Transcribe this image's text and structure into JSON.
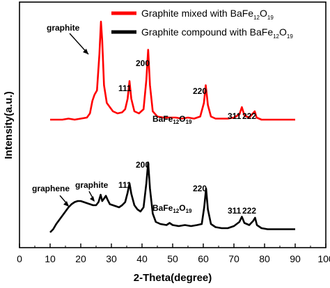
{
  "chart_data": {
    "type": "line",
    "xlabel": "2-Theta(degree)",
    "ylabel": "Intensity(a.u.)",
    "xlim": [
      0,
      100
    ],
    "x_ticks": [
      0,
      10,
      20,
      30,
      40,
      50,
      60,
      70,
      80,
      90,
      100
    ],
    "y_ticks_shown": false,
    "grid": false,
    "legend_position": "top-right",
    "series": [
      {
        "name_prefix": "Graphite mixed with BaFe",
        "name_sub1": "12",
        "name_mid": "O",
        "name_sub2": "19",
        "color": "#ff0000",
        "points": [
          [
            10,
            0.12
          ],
          [
            12,
            0.12
          ],
          [
            14,
            0.12
          ],
          [
            16,
            0.13
          ],
          [
            18,
            0.12
          ],
          [
            20,
            0.13
          ],
          [
            22,
            0.14
          ],
          [
            23,
            0.18
          ],
          [
            23.8,
            0.3
          ],
          [
            24.5,
            0.36
          ],
          [
            25.3,
            0.4
          ],
          [
            26.1,
            0.75
          ],
          [
            26.6,
            1.06
          ],
          [
            27.0,
            0.88
          ],
          [
            27.6,
            0.45
          ],
          [
            28.5,
            0.28
          ],
          [
            29.5,
            0.24
          ],
          [
            30.5,
            0.2
          ],
          [
            32,
            0.18
          ],
          [
            33.5,
            0.19
          ],
          [
            34.5,
            0.22
          ],
          [
            35.3,
            0.32
          ],
          [
            35.9,
            0.49
          ],
          [
            36.5,
            0.32
          ],
          [
            37.5,
            0.2
          ],
          [
            39,
            0.18
          ],
          [
            40.5,
            0.22
          ],
          [
            41.4,
            0.5
          ],
          [
            42.0,
            0.79
          ],
          [
            42.6,
            0.45
          ],
          [
            43.5,
            0.2
          ],
          [
            45,
            0.15
          ],
          [
            47,
            0.14
          ],
          [
            49,
            0.14
          ],
          [
            51,
            0.14
          ],
          [
            53,
            0.13
          ],
          [
            55,
            0.14
          ],
          [
            57,
            0.13
          ],
          [
            59,
            0.15
          ],
          [
            60.2,
            0.28
          ],
          [
            60.8,
            0.45
          ],
          [
            61.5,
            0.26
          ],
          [
            62.5,
            0.15
          ],
          [
            64,
            0.13
          ],
          [
            66,
            0.13
          ],
          [
            68,
            0.13
          ],
          [
            70,
            0.14
          ],
          [
            71.8,
            0.17
          ],
          [
            72.6,
            0.24
          ],
          [
            73.4,
            0.16
          ],
          [
            75,
            0.14
          ],
          [
            76.2,
            0.18
          ],
          [
            76.8,
            0.2
          ],
          [
            77.4,
            0.14
          ],
          [
            79,
            0.12
          ],
          [
            81,
            0.12
          ],
          [
            83,
            0.12
          ],
          [
            85,
            0.12
          ],
          [
            87,
            0.12
          ],
          [
            90,
            0.12
          ]
        ]
      },
      {
        "name_prefix": "Graphite compound with BaFe",
        "name_sub1": "12",
        "name_mid": "O",
        "name_sub2": "19",
        "color": "#000000",
        "points": [
          [
            10,
            -0.12
          ],
          [
            11,
            -0.09
          ],
          [
            12,
            -0.04
          ],
          [
            13,
            0.0
          ],
          [
            14,
            0.04
          ],
          [
            15,
            0.08
          ],
          [
            16,
            0.12
          ],
          [
            17,
            0.15
          ],
          [
            18,
            0.17
          ],
          [
            19,
            0.18
          ],
          [
            20,
            0.18
          ],
          [
            21,
            0.17
          ],
          [
            22,
            0.16
          ],
          [
            23,
            0.15
          ],
          [
            24,
            0.14
          ],
          [
            25,
            0.14
          ],
          [
            25.8,
            0.17
          ],
          [
            26.5,
            0.24
          ],
          [
            27.0,
            0.18
          ],
          [
            27.5,
            0.2
          ],
          [
            28.2,
            0.23
          ],
          [
            28.8,
            0.19
          ],
          [
            29.5,
            0.15
          ],
          [
            30.5,
            0.14
          ],
          [
            31.5,
            0.13
          ],
          [
            32.5,
            0.12
          ],
          [
            33.5,
            0.14
          ],
          [
            34.5,
            0.17
          ],
          [
            35.3,
            0.26
          ],
          [
            35.9,
            0.35
          ],
          [
            36.5,
            0.25
          ],
          [
            37.5,
            0.14
          ],
          [
            38.5,
            0.1
          ],
          [
            39.5,
            0.08
          ],
          [
            40.5,
            0.12
          ],
          [
            41.4,
            0.35
          ],
          [
            42.0,
            0.55
          ],
          [
            42.6,
            0.3
          ],
          [
            43.5,
            0.06
          ],
          [
            44.5,
            -0.02
          ],
          [
            46,
            -0.04
          ],
          [
            48,
            -0.05
          ],
          [
            49,
            -0.03
          ],
          [
            50,
            -0.05
          ],
          [
            52,
            -0.06
          ],
          [
            54,
            -0.05
          ],
          [
            56,
            -0.06
          ],
          [
            58,
            -0.05
          ],
          [
            59.5,
            -0.04
          ],
          [
            60.3,
            0.12
          ],
          [
            60.9,
            0.3
          ],
          [
            61.5,
            0.1
          ],
          [
            62.5,
            -0.04
          ],
          [
            64,
            -0.07
          ],
          [
            66,
            -0.08
          ],
          [
            68,
            -0.08
          ],
          [
            70,
            -0.06
          ],
          [
            71.8,
            -0.02
          ],
          [
            72.6,
            0.03
          ],
          [
            73.4,
            -0.03
          ],
          [
            75,
            -0.05
          ],
          [
            76.3,
            -0.01
          ],
          [
            76.9,
            0.02
          ],
          [
            77.5,
            -0.05
          ],
          [
            79,
            -0.08
          ],
          [
            81,
            -0.09
          ],
          [
            83,
            -0.09
          ],
          [
            85,
            -0.09
          ],
          [
            87,
            -0.09
          ],
          [
            90,
            -0.09
          ]
        ]
      }
    ],
    "annotations": {
      "red": [
        {
          "text": "graphite"
        },
        {
          "text": "111"
        },
        {
          "text": "200"
        },
        {
          "prefix": "BaFe",
          "sub1": "12",
          "mid": "O",
          "sub2": "19"
        },
        {
          "text": "220"
        },
        {
          "text": "311"
        },
        {
          "text": "222"
        }
      ],
      "black": [
        {
          "text": "graphene"
        },
        {
          "text": "graphite"
        },
        {
          "text": "111"
        },
        {
          "text": "200"
        },
        {
          "prefix": "BaFe",
          "sub1": "12",
          "mid": "O",
          "sub2": "19"
        },
        {
          "text": "220"
        },
        {
          "text": "311"
        },
        {
          "text": "222"
        }
      ]
    }
  }
}
